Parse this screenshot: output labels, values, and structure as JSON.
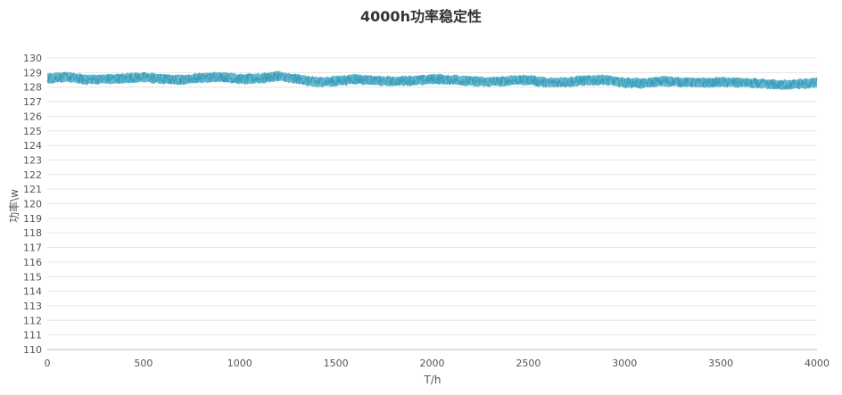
{
  "chart_data": {
    "type": "line",
    "title": "4000h功率稳定性",
    "xlabel": "T/h",
    "ylabel": "功率\\w",
    "xlim": [
      0,
      4000
    ],
    "ylim": [
      110,
      130
    ],
    "x_ticks": [
      0,
      500,
      1000,
      1500,
      2000,
      2500,
      3000,
      3500,
      4000
    ],
    "y_ticks": [
      110,
      111,
      112,
      113,
      114,
      115,
      116,
      117,
      118,
      119,
      120,
      121,
      122,
      123,
      124,
      125,
      126,
      127,
      128,
      129,
      130
    ],
    "grid": true,
    "legend": "none",
    "colors": {
      "series": "#4bacc6",
      "grid": "#e6e6e6",
      "axis": "#bfbfbf"
    },
    "series": [
      {
        "x": [
          0,
          100,
          200,
          300,
          400,
          500,
          600,
          700,
          800,
          900,
          1000,
          1100,
          1200,
          1300,
          1400,
          1500,
          1600,
          1700,
          1800,
          1900,
          2000,
          2100,
          2200,
          2300,
          2400,
          2500,
          2600,
          2700,
          2800,
          2900,
          3000,
          3100,
          3200,
          3300,
          3400,
          3500,
          3600,
          3700,
          3800,
          3900,
          4000
        ],
        "mean": [
          128.6,
          128.7,
          128.5,
          128.55,
          128.6,
          128.7,
          128.55,
          128.5,
          128.65,
          128.7,
          128.55,
          128.6,
          128.75,
          128.55,
          128.35,
          128.4,
          128.55,
          128.45,
          128.4,
          128.45,
          128.55,
          128.5,
          128.4,
          128.35,
          128.45,
          128.5,
          128.3,
          128.35,
          128.45,
          128.5,
          128.3,
          128.25,
          128.4,
          128.35,
          128.3,
          128.35,
          128.3,
          128.25,
          128.15,
          128.2,
          128.3
        ],
        "band": 0.35
      }
    ]
  }
}
